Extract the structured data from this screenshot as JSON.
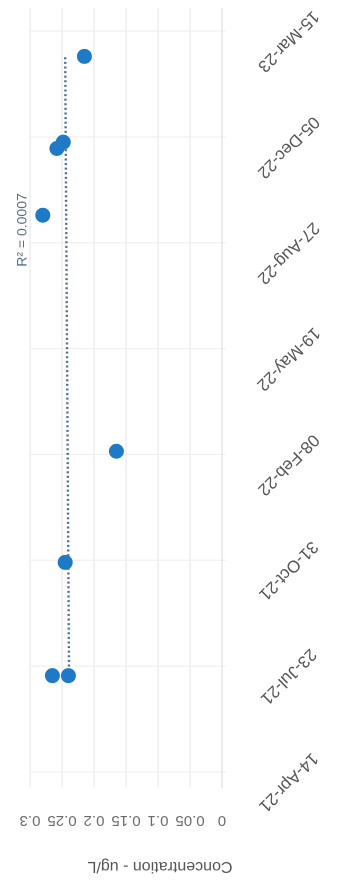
{
  "chart_data": {
    "type": "scatter",
    "orientation_note_rotated": true,
    "ylabel": "Concentration - ug/L",
    "y_ticks": [
      "0.3",
      "0.25",
      "0.2",
      "0.15",
      "0.1",
      "0.05",
      "0"
    ],
    "y_tick_values": [
      0.3,
      0.25,
      0.2,
      0.15,
      0.1,
      0.05,
      0
    ],
    "ylim": [
      0,
      0.3
    ],
    "x_ticks": [
      "14-Apr-21",
      "23-Jul-21",
      "31-Oct-21",
      "08-Feb-22",
      "19-May-22",
      "27-Aug-22",
      "05-Dec-22",
      "15-Mar-23"
    ],
    "x_tick_values": [
      "2021-04-14",
      "2021-07-23",
      "2021-10-31",
      "2022-02-08",
      "2022-05-19",
      "2022-08-27",
      "2022-12-05",
      "2023-03-15"
    ],
    "xlim": [
      "2021-04-14",
      "2023-03-15"
    ],
    "series": [
      {
        "color": "#1f7ac6",
        "points": [
          {
            "x": "2021-07-14",
            "y": 0.265
          },
          {
            "x": "2021-07-14",
            "y": 0.24
          },
          {
            "x": "2021-10-29",
            "y": 0.245
          },
          {
            "x": "2022-02-11",
            "y": 0.165
          },
          {
            "x": "2022-09-22",
            "y": 0.28
          },
          {
            "x": "2022-11-24",
            "y": 0.258
          },
          {
            "x": "2022-11-30",
            "y": 0.248
          },
          {
            "x": "2023-02-19",
            "y": 0.215
          }
        ]
      }
    ],
    "trendline": {
      "style": "dotted",
      "color": "#4f6e96",
      "from": {
        "x": "2021-07-14",
        "y": 0.239
      },
      "to": {
        "x": "2023-02-19",
        "y": 0.245
      }
    },
    "annotation": "R² = 0.0007",
    "grid": true
  }
}
